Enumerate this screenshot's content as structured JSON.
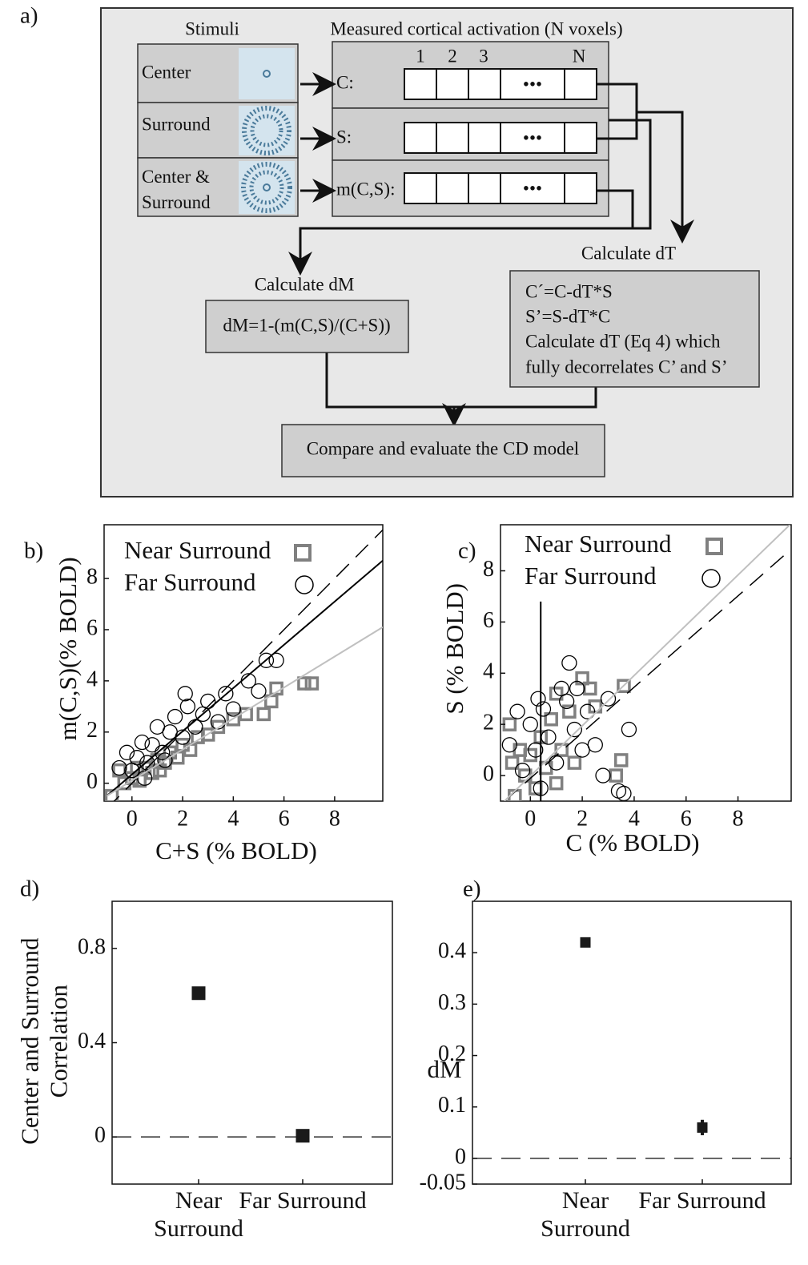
{
  "diagram": {
    "label": "a)",
    "stimuli_header": "Stimuli",
    "activation_header": "Measured cortical activation (N voxels)",
    "stimuli": [
      "Center",
      "Surround",
      "Center & Surround"
    ],
    "rows": [
      "C:",
      "S:",
      "m(C,S):"
    ],
    "voxel_labels": [
      "1",
      "2",
      "3",
      "N"
    ],
    "ellipsis": "•••",
    "calc_dt": {
      "title": "Calculate dT",
      "lines": [
        "C´=C-dT*S",
        "S’=S-dT*C",
        "Calculate dT (Eq 4) which",
        "fully decorrelates C’ and S’"
      ]
    },
    "calc_dm": {
      "title": "Calculate dM",
      "formula": "dM=1-(m(C,S)/(C+S))"
    },
    "compare": "Compare and evaluate the CD model"
  },
  "chart_data": [
    {
      "type": "scatter",
      "panel_label": "b)",
      "x_label": "C+S (% BOLD)",
      "y_label": "m(C,S)(% BOLD)",
      "xlim": [
        -1.1,
        9.9
      ],
      "ylim": [
        -0.7,
        10.1
      ],
      "xticks": [
        0,
        2,
        4,
        6,
        8
      ],
      "yticks": [
        0,
        2,
        4,
        6,
        8
      ],
      "series": [
        {
          "name": "Near Surround",
          "color": "#808080",
          "marker": "square",
          "x": [
            -0.8,
            -0.5,
            -0.3,
            0,
            0.3,
            0.5,
            0.8,
            1,
            1.3,
            1.5,
            1.8,
            2,
            2.3,
            2.6,
            3,
            3.4,
            4,
            4.5,
            5.2,
            5.5,
            5.7,
            6.8,
            7.1,
            0.2,
            1.1
          ],
          "values": [
            -0.5,
            0.5,
            0,
            0.2,
            0.1,
            0.6,
            0.4,
            0.9,
            0.8,
            1.2,
            1.0,
            1.5,
            1.3,
            1.8,
            1.9,
            2.2,
            2.5,
            2.7,
            2.7,
            3.2,
            3.7,
            3.9,
            3.9,
            0.6,
            0.5
          ]
        },
        {
          "name": "Far Surround",
          "color": "#000000",
          "marker": "circle",
          "x": [
            -0.5,
            -0.2,
            0,
            0.2,
            0.4,
            0.6,
            0.8,
            1,
            1.2,
            1.5,
            1.7,
            2,
            2.2,
            2.5,
            2.8,
            3,
            3.4,
            3.7,
            4,
            4.6,
            5,
            5.3,
            5.7,
            2.1,
            0.5,
            1.3
          ],
          "values": [
            0.6,
            1.2,
            0.5,
            1,
            1.6,
            0.8,
            1.5,
            2.2,
            1.2,
            2,
            2.6,
            1.8,
            3.0,
            2.2,
            2.7,
            3.2,
            2.4,
            3.5,
            2.9,
            4,
            3.6,
            4.8,
            4.8,
            3.5,
            0.2,
            0.9
          ]
        }
      ],
      "lines": [
        {
          "color": "#000000",
          "dashed": true,
          "x": [
            -1,
            9.9
          ],
          "values": [
            -1,
            9.9
          ]
        },
        {
          "color": "#000000",
          "dashed": false,
          "x": [
            -1,
            9.9
          ],
          "values": [
            -0.5,
            8.7
          ]
        },
        {
          "color": "#c0c0c0",
          "dashed": false,
          "x": [
            -1,
            9.9
          ],
          "values": [
            -0.5,
            6.1
          ]
        }
      ]
    },
    {
      "type": "scatter",
      "panel_label": "c)",
      "x_label": "C (% BOLD)",
      "y_label": "S (% BOLD)",
      "xlim": [
        -1.15,
        10.05
      ],
      "ylim": [
        -1.0,
        9.8
      ],
      "xticks": [
        0,
        2,
        4,
        6,
        8
      ],
      "yticks": [
        0,
        2,
        4,
        6,
        8
      ],
      "series": [
        {
          "name": "Near Surround",
          "color": "#808080",
          "marker": "square",
          "x": [
            -0.8,
            -0.6,
            -0.4,
            -0.2,
            0,
            0.2,
            0.4,
            0.6,
            0.8,
            1,
            1.2,
            1.5,
            1.7,
            2,
            2.3,
            2.5,
            3.3,
            3.5,
            3.6,
            1,
            -0.7
          ],
          "values": [
            2,
            -0.8,
            1,
            0,
            0.8,
            -0.5,
            1.5,
            0.3,
            2.2,
            -0.3,
            1.0,
            2.5,
            0.5,
            3.8,
            3.4,
            2.7,
            0,
            0.6,
            3.5,
            3.2,
            0.5
          ]
        },
        {
          "name": "Far Surround",
          "color": "#000000",
          "marker": "circle",
          "x": [
            -0.8,
            -0.5,
            -0.3,
            0,
            0.2,
            0.4,
            0.5,
            0.7,
            1,
            1.2,
            1.4,
            1.5,
            1.7,
            2,
            2.2,
            2.5,
            2.8,
            3,
            3.4,
            3.6,
            3.8,
            0.3,
            1.8
          ],
          "values": [
            1.2,
            2.5,
            0.2,
            2,
            1,
            -0.5,
            2.6,
            1.5,
            0.5,
            3.4,
            2.9,
            4.4,
            1.8,
            1,
            2.5,
            1.2,
            0,
            3.0,
            -0.6,
            -0.7,
            1.8,
            3.0,
            3.4
          ]
        }
      ],
      "lines": [
        {
          "color": "#000000",
          "dashed": true,
          "x": [
            -1,
            10
          ],
          "values": [
            -1,
            8.8
          ]
        },
        {
          "color": "#c0c0c0",
          "dashed": false,
          "x": [
            -1,
            10
          ],
          "values": [
            -1,
            9.8
          ]
        },
        {
          "color": "#000000",
          "dashed": false,
          "x": [
            0.4,
            0.4
          ],
          "values": [
            -1,
            6.8
          ]
        }
      ]
    },
    {
      "type": "dot",
      "panel_label": "d)",
      "y_label": "Center and Surround Correlation",
      "categories": [
        "Near Surround",
        "Far Surround"
      ],
      "values": [
        0.61,
        0.005
      ],
      "color": "#1a1a1a",
      "ylim": [
        -0.2,
        1.0
      ],
      "yticks": [
        0,
        0.4,
        0.8
      ],
      "zero_line": true
    },
    {
      "type": "dot",
      "panel_label": "e)",
      "y_label": "dM",
      "categories": [
        "Near Surround",
        "Far Surround"
      ],
      "values": [
        0.42,
        0.06
      ],
      "errors": [
        0.005,
        0.015
      ],
      "color": "#1a1a1a",
      "ylim": [
        -0.05,
        0.5
      ],
      "yticks": [
        -0.05,
        0,
        0.1,
        0.2,
        0.3,
        0.4
      ],
      "zero_line": true
    }
  ]
}
